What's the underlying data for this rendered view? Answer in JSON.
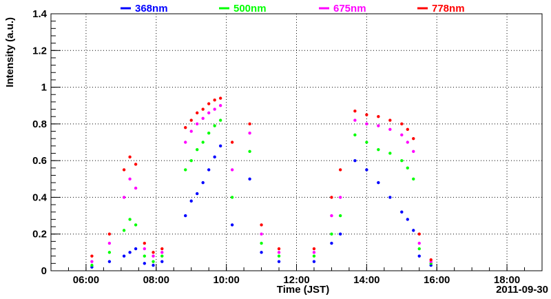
{
  "chart_data": {
    "type": "scatter",
    "title": "",
    "xlabel": "Time (JST)",
    "ylabel": "Intensity (a.u.)",
    "date_label": "2011-09-30",
    "xlim": [
      "05:00",
      "19:00"
    ],
    "ylim": [
      0,
      1.4
    ],
    "x_ticks": [
      "06:00",
      "08:00",
      "10:00",
      "12:00",
      "14:00",
      "16:00",
      "18:00"
    ],
    "y_ticks": [
      "0",
      "0.2",
      "0.4",
      "0.6",
      "0.8",
      "1",
      "1.2",
      "1.4"
    ],
    "grid": true,
    "legend_position": "top",
    "series": [
      {
        "name": "368nm",
        "color": "#0000ff",
        "x": [
          "06:10",
          "06:40",
          "07:05",
          "07:15",
          "07:25",
          "07:40",
          "07:55",
          "08:10",
          "08:50",
          "09:00",
          "09:10",
          "09:20",
          "09:30",
          "09:40",
          "09:50",
          "10:10",
          "10:40",
          "11:00",
          "11:30",
          "12:30",
          "13:00",
          "13:15",
          "13:40",
          "14:00",
          "14:20",
          "14:40",
          "15:00",
          "15:10",
          "15:20",
          "15:30",
          "15:50"
        ],
        "y": [
          0.02,
          0.05,
          0.08,
          0.1,
          0.12,
          0.04,
          0.03,
          0.05,
          0.3,
          0.38,
          0.42,
          0.48,
          0.55,
          0.62,
          0.68,
          0.25,
          0.5,
          0.1,
          0.05,
          0.05,
          0.15,
          0.2,
          0.6,
          0.55,
          0.48,
          0.4,
          0.32,
          0.28,
          0.22,
          0.08,
          0.03
        ]
      },
      {
        "name": "500nm",
        "color": "#00ff00",
        "x": [
          "06:10",
          "06:40",
          "07:05",
          "07:15",
          "07:25",
          "07:40",
          "07:55",
          "08:10",
          "08:50",
          "09:00",
          "09:10",
          "09:20",
          "09:30",
          "09:40",
          "09:50",
          "10:10",
          "10:40",
          "11:00",
          "11:30",
          "12:30",
          "13:00",
          "13:15",
          "13:40",
          "14:00",
          "14:20",
          "14:40",
          "15:00",
          "15:10",
          "15:20",
          "15:30",
          "15:50"
        ],
        "y": [
          0.03,
          0.1,
          0.22,
          0.28,
          0.25,
          0.08,
          0.05,
          0.08,
          0.55,
          0.6,
          0.66,
          0.7,
          0.75,
          0.79,
          0.82,
          0.4,
          0.65,
          0.15,
          0.08,
          0.08,
          0.2,
          0.3,
          0.74,
          0.7,
          0.66,
          0.64,
          0.6,
          0.56,
          0.5,
          0.12,
          0.04
        ]
      },
      {
        "name": "675nm",
        "color": "#ff00ff",
        "x": [
          "06:10",
          "06:40",
          "07:05",
          "07:15",
          "07:25",
          "07:40",
          "07:55",
          "08:10",
          "08:50",
          "09:00",
          "09:10",
          "09:20",
          "09:30",
          "09:40",
          "09:50",
          "10:10",
          "10:40",
          "11:00",
          "11:30",
          "12:30",
          "13:00",
          "13:15",
          "13:40",
          "14:00",
          "14:20",
          "14:40",
          "15:00",
          "15:10",
          "15:20",
          "15:30",
          "15:50"
        ],
        "y": [
          0.05,
          0.15,
          0.4,
          0.5,
          0.45,
          0.12,
          0.08,
          0.1,
          0.7,
          0.76,
          0.8,
          0.83,
          0.86,
          0.88,
          0.9,
          0.55,
          0.75,
          0.2,
          0.1,
          0.1,
          0.3,
          0.4,
          0.82,
          0.8,
          0.79,
          0.77,
          0.74,
          0.7,
          0.65,
          0.15,
          0.05
        ]
      },
      {
        "name": "778nm",
        "color": "#ff0000",
        "x": [
          "06:10",
          "06:40",
          "07:05",
          "07:15",
          "07:25",
          "07:40",
          "07:55",
          "08:10",
          "08:50",
          "09:00",
          "09:10",
          "09:20",
          "09:30",
          "09:40",
          "09:50",
          "10:10",
          "10:40",
          "11:00",
          "11:30",
          "12:30",
          "13:00",
          "13:15",
          "13:40",
          "14:00",
          "14:20",
          "14:40",
          "15:00",
          "15:10",
          "15:20",
          "15:30",
          "15:50"
        ],
        "y": [
          0.08,
          0.2,
          0.55,
          0.62,
          0.58,
          0.15,
          0.1,
          0.12,
          0.78,
          0.82,
          0.86,
          0.88,
          0.91,
          0.93,
          0.94,
          0.7,
          0.8,
          0.25,
          0.12,
          0.12,
          0.4,
          0.55,
          0.87,
          0.85,
          0.84,
          0.82,
          0.8,
          0.77,
          0.72,
          0.2,
          0.06
        ]
      }
    ]
  }
}
